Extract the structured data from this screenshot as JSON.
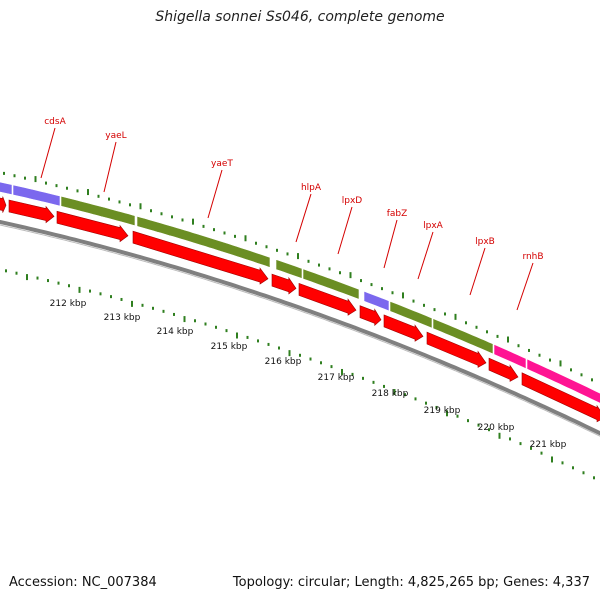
{
  "title": "Shigella sonnei Ss046, complete genome",
  "accession": "Accession: NC_007384",
  "topology": "Topology: circular; Length: 4,825,265 bp; Genes: 4,337",
  "colors": {
    "gene_label": "#d40000",
    "cds_arrow": "#ff0000",
    "tick": "#2f7f1f",
    "backbone": "#808080",
    "feature_purple": "#7b68ee",
    "feature_green": "#6b8e23",
    "feature_pink": "#ff1493"
  },
  "gene_labels": [
    {
      "name": "cdsA"
    },
    {
      "name": "yaeL"
    },
    {
      "name": "yaeT"
    },
    {
      "name": "hlpA"
    },
    {
      "name": "lpxD"
    },
    {
      "name": "fabZ"
    },
    {
      "name": "lpxA"
    },
    {
      "name": "lpxB"
    },
    {
      "name": "rnhB"
    }
  ],
  "kbp_labels": [
    "212 kbp",
    "213 kbp",
    "214 kbp",
    "215 kbp",
    "216 kbp",
    "217 kbp",
    "218 kbp",
    "219 kbp",
    "220 kbp",
    "221 kbp"
  ]
}
